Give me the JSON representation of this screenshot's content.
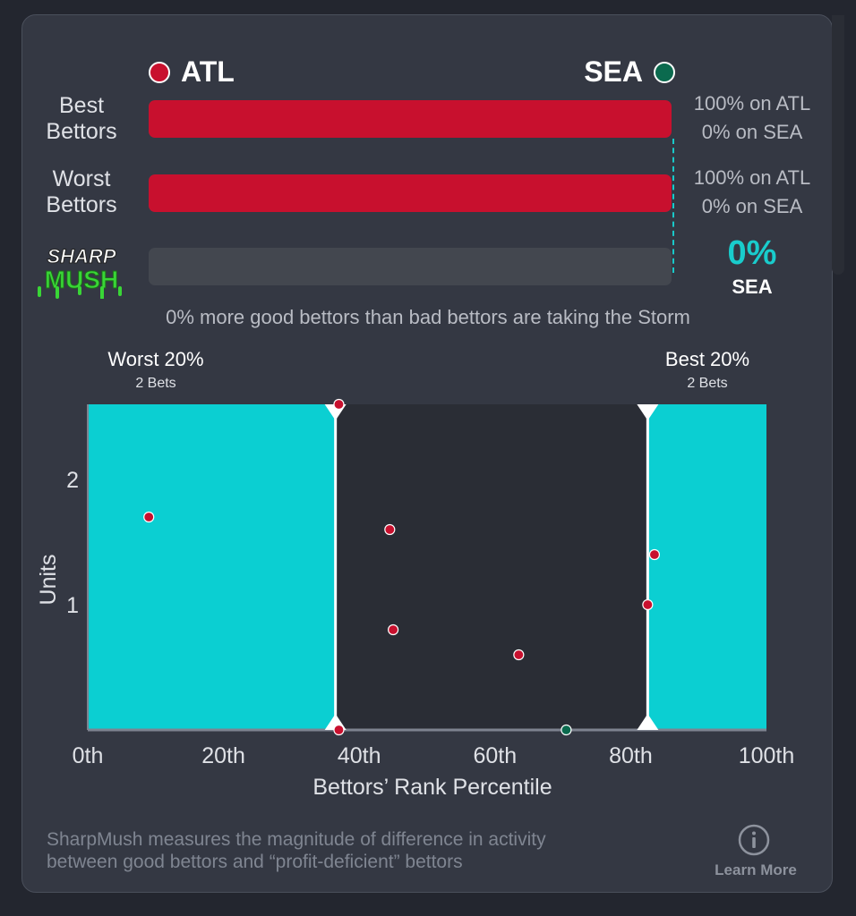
{
  "header": {
    "team_left": {
      "abbr": "ATL",
      "color": "#c8102e"
    },
    "team_right": {
      "abbr": "SEA",
      "color": "#0b6a4e"
    }
  },
  "rows": [
    {
      "label_line1": "Best",
      "label_line2": "Bettors",
      "fill_fraction": 1.0,
      "pct_line1": "100% on ATL",
      "pct_line2": "0% on SEA"
    },
    {
      "label_line1": "Worst",
      "label_line2": "Bettors",
      "fill_fraction": 1.0,
      "pct_line1": "100% on ATL",
      "pct_line2": "0% on SEA"
    },
    {
      "fill_fraction": 0.0
    }
  ],
  "logo": {
    "line1": "SHARP",
    "line2": "MUSH"
  },
  "sharpmush": {
    "value": "0%",
    "team": "SEA",
    "color": "#19cccc"
  },
  "summary_text": "0% more good bettors than bad bettors are taking the Storm",
  "groups": {
    "worst": {
      "title": "Worst 20%",
      "count": "2 Bets"
    },
    "best": {
      "title": "Best 20%",
      "count": "2 Bets"
    }
  },
  "chart_data": {
    "type": "scatter",
    "xlabel": "Bettors’ Rank Percentile",
    "ylabel": "Units",
    "xlim": [
      0,
      100
    ],
    "ylim": [
      0,
      2.6
    ],
    "x_ticks": [
      0,
      20,
      40,
      60,
      80,
      100
    ],
    "x_tick_labels": [
      "0th",
      "20th",
      "40th",
      "60th",
      "80th",
      "100th"
    ],
    "y_ticks": [
      1,
      2
    ],
    "y_tick_labels": [
      "1",
      "2"
    ],
    "highlight_regions": [
      {
        "name": "Worst 20%",
        "x_range": [
          0,
          36.5
        ],
        "color": "#0bcfd2"
      },
      {
        "name": "Best 20%",
        "x_range": [
          82.5,
          100
        ],
        "color": "#0bcfd2"
      }
    ],
    "points": [
      {
        "x": 9,
        "y": 1.7,
        "team": "ATL"
      },
      {
        "x": 37,
        "y": 2.6,
        "team": "ATL"
      },
      {
        "x": 37,
        "y": 0.0,
        "team": "ATL"
      },
      {
        "x": 44.5,
        "y": 1.6,
        "team": "ATL"
      },
      {
        "x": 45,
        "y": 0.8,
        "team": "ATL"
      },
      {
        "x": 63.5,
        "y": 0.6,
        "team": "ATL"
      },
      {
        "x": 70.5,
        "y": 0.0,
        "team": "SEA"
      },
      {
        "x": 82.5,
        "y": 1.0,
        "team": "ATL"
      },
      {
        "x": 83.5,
        "y": 1.4,
        "team": "ATL"
      }
    ],
    "colors": {
      "ATL": "#c8102e",
      "SEA": "#0b6a4e"
    }
  },
  "footer": {
    "line1": "SharpMush measures the magnitude of difference in activity",
    "line2": "between good bettors and “profit-deficient” bettors",
    "learn_more": "Learn More"
  }
}
